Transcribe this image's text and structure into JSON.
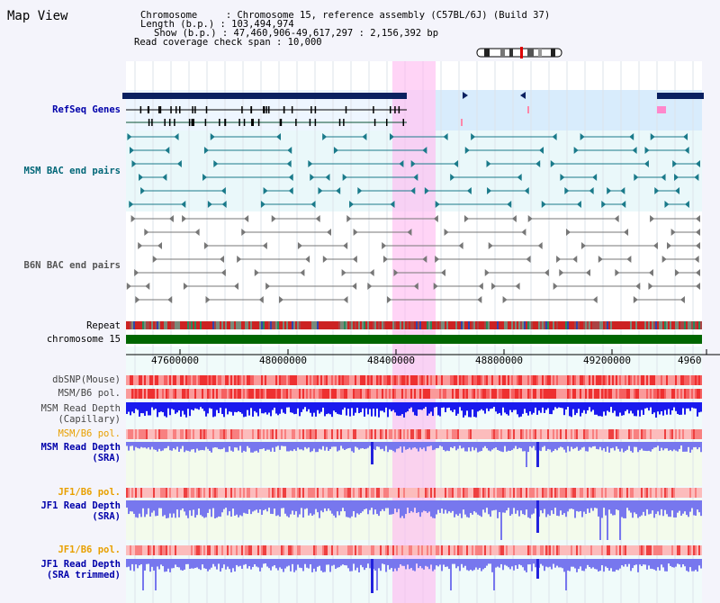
{
  "title": "Map View",
  "info": {
    "chromosome": "Chromosome     : Chromosome 15, reference assembly (C57BL/6J) (Build 37)",
    "length": "Length (b.p.) : 103,494,974",
    "show": "Show (b.p.) : 47,460,906-49,617,297 : 2,156,392 bp",
    "span": "Read coverage check span : 10,000"
  },
  "tracks": {
    "refseq": "RefSeq Genes",
    "msm_bac": "MSM BAC end pairs",
    "b6n_bac": "B6N BAC end pairs",
    "repeat": "Repeat",
    "chromosome": "chromosome 15",
    "dbsnp": "dbSNP(Mouse)",
    "msm_b6_pol": "MSM/B6 pol.",
    "msm_depth_cap": "MSM Read Depth",
    "msm_depth_cap_sub": "(Capillary)",
    "msm_b6_pol2": "MSM/B6 pol.",
    "msm_depth_sra": "MSM Read Depth",
    "msm_depth_sra_sub": "(SRA)",
    "jf1_b6_pol": "JF1/B6 pol.",
    "jf1_depth_sra": "JF1 Read Depth",
    "jf1_depth_sra_sub": "(SRA)",
    "jf1_b6_pol2": "JF1/B6 pol.",
    "jf1_depth_trim": "JF1 Read Depth",
    "jf1_depth_trim_sub": "(SRA trimmed)"
  },
  "axis": {
    "ticks": [
      "47600000",
      "48000000",
      "48400000",
      "48800000",
      "49200000",
      "4960"
    ]
  },
  "colors": {
    "refseq_label": "#0000aa",
    "msm_bac_label": "#006677",
    "b6n_label": "#555555",
    "orange": "#e8a000",
    "navy": "#0000aa",
    "depth_dark": "#1a1aee",
    "depth_light": "#7777ee",
    "highlight": "#ffb8f0"
  }
}
